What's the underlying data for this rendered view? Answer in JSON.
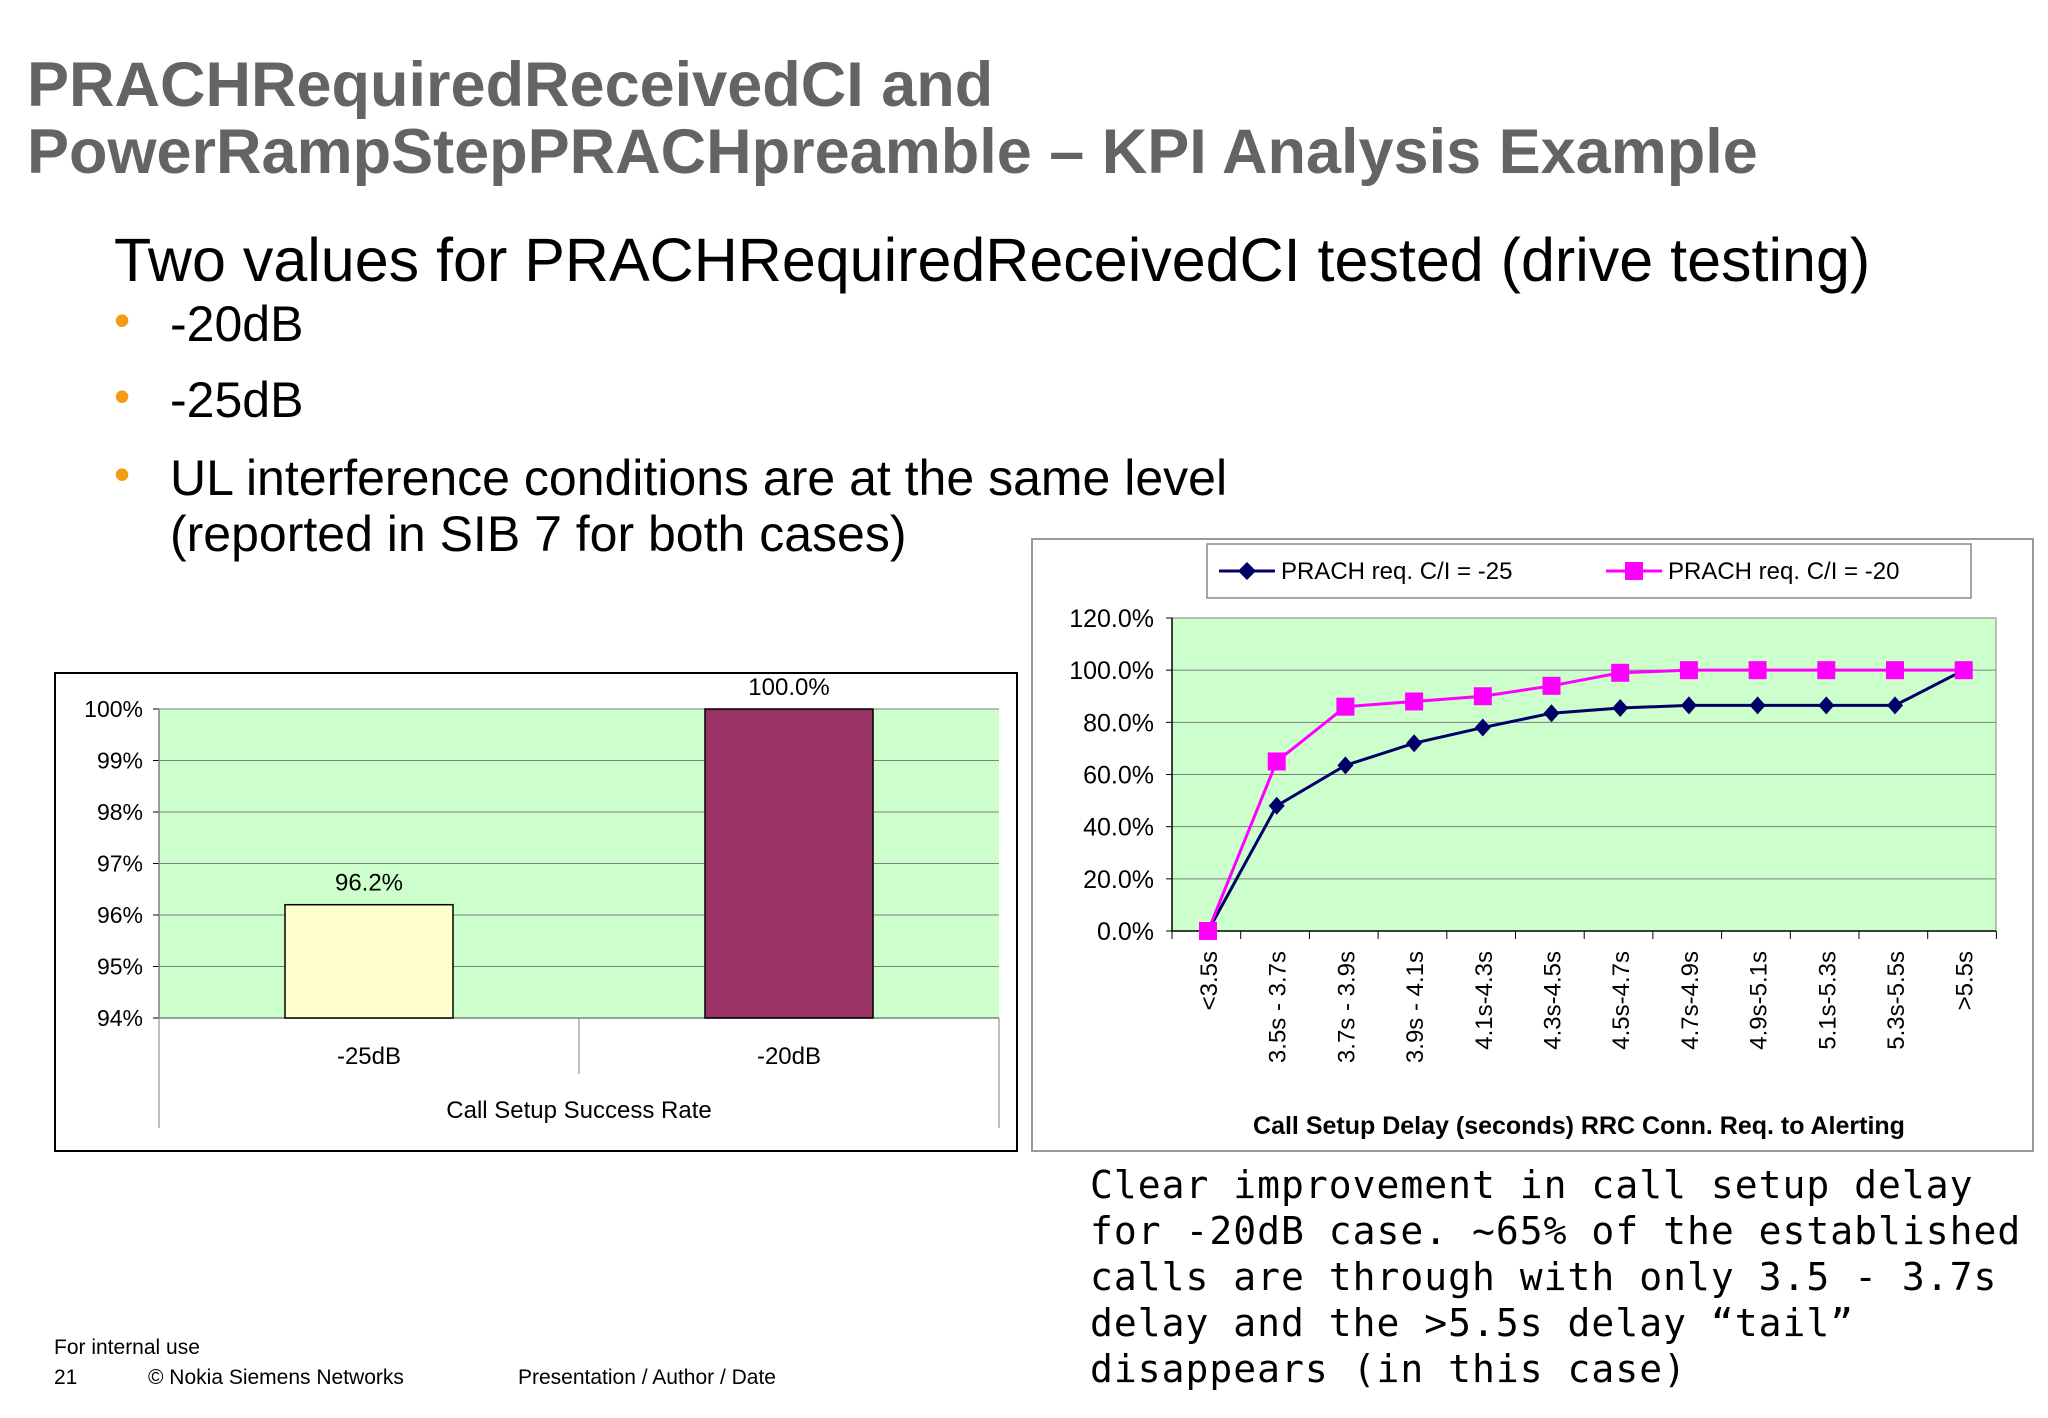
{
  "slide": {
    "title_line1": "PRACHRequiredReceivedCI and",
    "title_line2": "PowerRampStepPRACHpreamble – KPI Analysis Example",
    "subtitle": "Two values for PRACHRequiredReceivedCI tested (drive testing)",
    "bullets": [
      "-20dB",
      "-25dB",
      "UL interference conditions are at the same level",
      "(reported in SIB 7 for both cases)"
    ],
    "note": "Clear improvement in call setup delay for -20dB case. ~65% of the established calls are through with only 3.5 - 3.7s delay and the >5.5s delay “tail” disappears (in this case)",
    "footer": {
      "internal": "For internal use",
      "page": "21",
      "copyright": "© Nokia Siemens Networks",
      "presentation": "Presentation / Author / Date"
    },
    "colors": {
      "title": "#636466",
      "bullet": "#f39c12",
      "plot_bg": "#ccffcc"
    }
  },
  "chart_data": [
    {
      "type": "bar",
      "categories": [
        "-25dB",
        "-20dB"
      ],
      "values": [
        96.2,
        100.0
      ],
      "data_labels": [
        "96.2%",
        "100.0%"
      ],
      "colors": [
        "#ffffcc",
        "#993366"
      ],
      "xlabel": "Call Setup Success Rate",
      "ylabel": "",
      "ylim": [
        94,
        100
      ],
      "yticks": [
        "94%",
        "95%",
        "96%",
        "97%",
        "98%",
        "99%",
        "100%"
      ],
      "grid": true,
      "legend": "none"
    },
    {
      "type": "line",
      "categories": [
        "<3.5s",
        "3.5s - 3.7s",
        "3.7s - 3.9s",
        "3.9s - 4.1s",
        "4.1s-4.3s",
        "4.3s-4.5s",
        "4.5s-4.7s",
        "4.7s-4.9s",
        "4.9s-5.1s",
        "5.1s-5.3s",
        "5.3s-5.5s",
        ">5.5s"
      ],
      "series": [
        {
          "name": "PRACH req. C/I = -25",
          "color": "#000066",
          "marker": "diamond",
          "values": [
            0.0,
            48.0,
            63.5,
            72.0,
            78.0,
            83.5,
            85.5,
            86.5,
            86.5,
            86.5,
            86.5,
            100.0
          ]
        },
        {
          "name": "PRACH req. C/I = -20",
          "color": "#ff00ff",
          "marker": "square",
          "values": [
            0.0,
            65.0,
            86.0,
            88.0,
            90.0,
            94.0,
            99.0,
            100.0,
            100.0,
            100.0,
            100.0,
            100.0
          ]
        }
      ],
      "xlabel": "Call Setup Delay (seconds) RRC Conn. Req. to Alerting",
      "ylabel": "",
      "ylim": [
        0,
        120
      ],
      "yticks": [
        "0.0%",
        "20.0%",
        "40.0%",
        "60.0%",
        "80.0%",
        "100.0%",
        "120.0%"
      ],
      "grid": true,
      "legend": "top"
    }
  ]
}
